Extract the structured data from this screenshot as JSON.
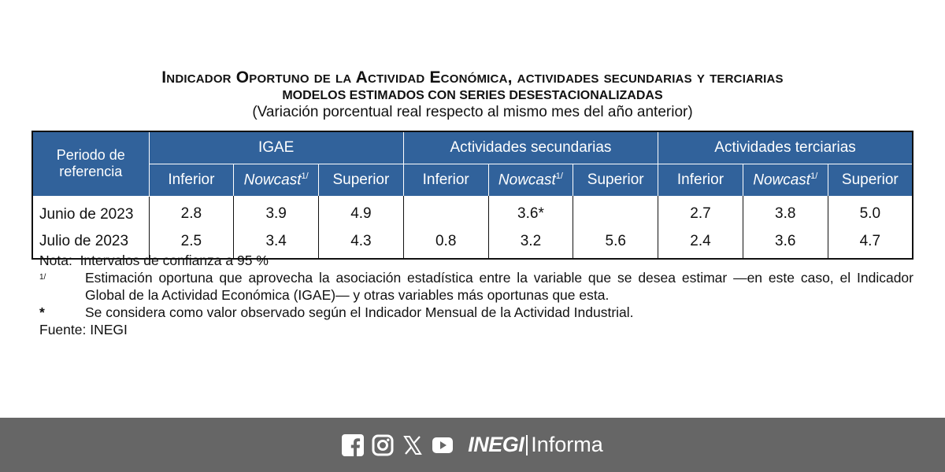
{
  "header": {
    "title": "Indicador Oportuno de la Actividad Económica, actividades secundarias y terciarias",
    "subtitle": "MODELOS ESTIMADOS CON SERIES DESESTACIONALIZADAS",
    "caption": "(Variación porcentual real respecto al mismo mes del año anterior)"
  },
  "table": {
    "period_header": "Periodo de referencia",
    "groups": [
      "IGAE",
      "Actividades secundarias",
      "Actividades terciarias"
    ],
    "subheaders": {
      "inferior": "Inferior",
      "nowcast": "Nowcast",
      "nowcast_sup": "1/",
      "superior": "Superior"
    },
    "rows": [
      {
        "period": "Junio de 2023",
        "values": [
          "2.8",
          "3.9",
          "4.9",
          "",
          "3.6*",
          "",
          "2.7",
          "3.8",
          "5.0"
        ]
      },
      {
        "period": "Julio de 2023",
        "values": [
          "2.5",
          "3.4",
          "4.3",
          "0.8",
          "3.2",
          "5.6",
          "2.4",
          "3.6",
          "4.7"
        ]
      }
    ]
  },
  "notes": {
    "nota_label": "Nota:",
    "nota_text": "Intervalos de confianza a 95 %",
    "fn1_key": "1/",
    "fn1_text": "Estimación oportuna que aprovecha la asociación estadística entre la variable que se desea estimar —en este caso, el Indicador Global de la Actividad Económica (IGAE)— y otras variables más oportunas que esta.",
    "fn2_key": "*",
    "fn2_text": "Se considera como valor observado según el Indicador Mensual de la Actividad Industrial.",
    "source": "Fuente: INEGI"
  },
  "footer": {
    "icons": [
      "facebook-icon",
      "instagram-icon",
      "x-icon",
      "youtube-icon"
    ],
    "brand_bold": "INEGI",
    "brand_light": "Informa",
    "background": "#666666"
  },
  "colors": {
    "header_blue": "#31629b"
  }
}
